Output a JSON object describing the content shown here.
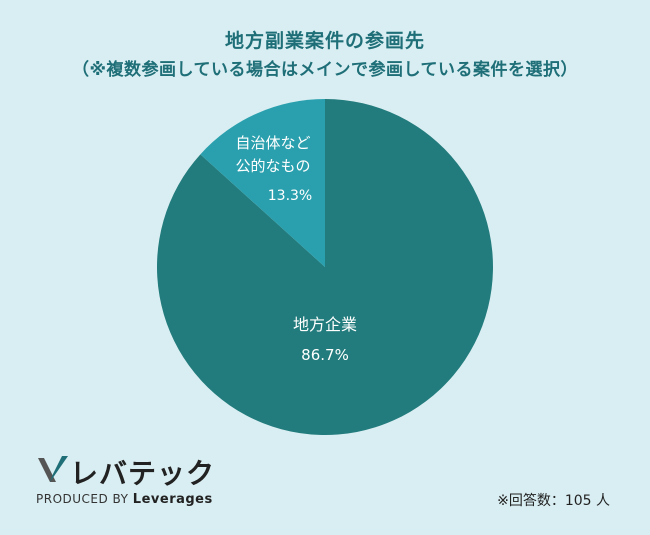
{
  "chart_data": {
    "type": "pie",
    "title": "地方副業案件の参画先",
    "subtitle": "（※複数参画している場合はメインで参画している案件を選択）",
    "slices": [
      {
        "label": "地方企業",
        "value": 86.7,
        "display": "86.7%",
        "color": "#227b7c"
      },
      {
        "label": "自治体など公的なもの",
        "label_lines": [
          "自治体など",
          "公的なもの"
        ],
        "value": 13.3,
        "display": "13.3%",
        "color": "#2aa0ae"
      }
    ],
    "start": "12 o'clock",
    "direction": "clockwise"
  },
  "brand": {
    "name": "レバテック",
    "produced_by": "PRODUCED BY",
    "company": "Leverages"
  },
  "footnote": "※回答数：105 人",
  "colors": {
    "background": "#d9eef2",
    "title": "#1f6f78"
  }
}
